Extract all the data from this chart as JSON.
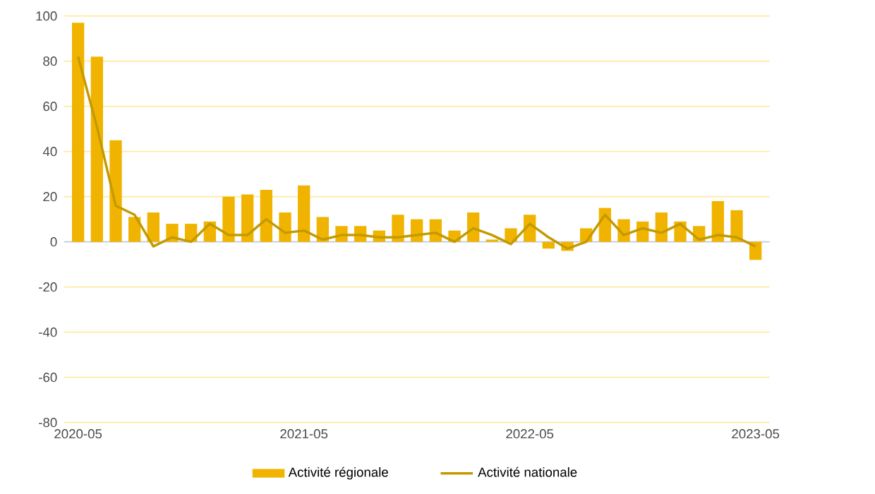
{
  "chart_data": {
    "type": "bar",
    "categories": [
      "2020-05",
      null,
      null,
      null,
      null,
      null,
      null,
      null,
      null,
      null,
      null,
      null,
      "2021-05",
      null,
      null,
      null,
      null,
      null,
      null,
      null,
      null,
      null,
      null,
      null,
      "2022-05",
      null,
      null,
      null,
      null,
      null,
      null,
      null,
      null,
      null,
      null,
      null,
      "2023-05"
    ],
    "series": [
      {
        "name": "Activité régionale",
        "color": "#f0b400",
        "values": [
          97,
          82,
          45,
          11,
          13,
          8,
          8,
          9,
          20,
          21,
          23,
          13,
          25,
          11,
          7,
          7,
          5,
          12,
          10,
          10,
          5,
          13,
          1,
          6,
          12,
          -3,
          -4,
          6,
          15,
          10,
          9,
          13,
          9,
          7,
          18,
          14,
          -8
        ]
      },
      {
        "name": "Activité nationale",
        "type": "line",
        "color": "#c49a00",
        "values": [
          82,
          51,
          16,
          12,
          -2,
          2,
          0,
          8,
          3,
          3,
          10,
          4,
          5,
          1,
          3,
          3,
          2,
          2,
          3,
          4,
          0,
          6,
          3,
          -1,
          8,
          2,
          -3,
          0,
          12,
          3,
          6,
          4,
          8,
          1,
          3,
          2,
          -2
        ]
      }
    ],
    "ylim": [
      -80,
      100
    ],
    "yticks": [
      -80,
      -60,
      -40,
      -20,
      0,
      20,
      40,
      60,
      80,
      100
    ],
    "grid": "y",
    "legend": "bottom",
    "ref_lines": [
      {
        "axis": "y",
        "value": 0,
        "color": "#bfcdf0"
      }
    ]
  }
}
